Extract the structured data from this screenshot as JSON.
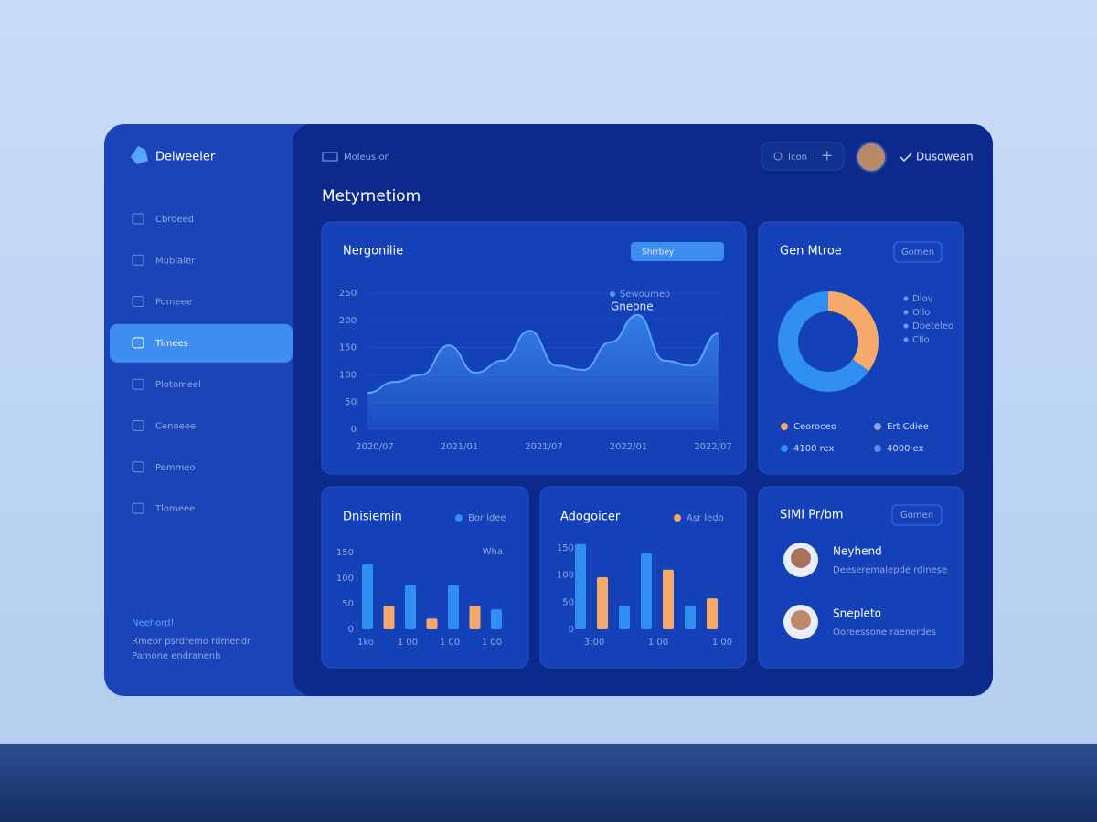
{
  "brand": "Delweeler",
  "sidebar": {
    "items": [
      "Cbroeed",
      "Mublaler",
      "Pomeee",
      "Timees",
      "Plotomeel",
      "Cenoeee",
      "Pemmeo",
      "Tlomeee"
    ],
    "active": 3,
    "footer_title": "Neehord!",
    "footer_lines": [
      "Rmeor psrdremo rdmendr",
      "Pamone endranenh"
    ]
  },
  "topbar": {
    "breadcrumb": "Moleus on",
    "search": "Icon",
    "user": "Dusowean"
  },
  "page_title": "Metyrnetiom",
  "area_card": {
    "title": "Nergonilie",
    "button": "Shrrbey",
    "legend": "Sewoumeo",
    "annotation": "Gneone",
    "color": "#3d8ef0",
    "values": [
      67,
      87,
      100,
      154,
      104,
      126,
      181,
      117,
      109,
      160,
      210,
      126,
      117,
      176
    ],
    "ylim": [
      0,
      250
    ],
    "yticks": [
      0,
      50,
      100,
      150,
      200,
      250
    ],
    "xlabels": [
      "2020/07",
      "2021/01",
      "2021/07",
      "2022/01",
      "2022/07"
    ]
  },
  "donut_card": {
    "title": "Gen Mtroe",
    "button": "Gomen",
    "values": [
      65,
      35
    ],
    "colors": [
      "#2f8ff0",
      "#f5a96a"
    ],
    "side_legend": [
      "Dlov",
      "Ollo",
      "Doeteleo",
      "Cllo"
    ],
    "legend": [
      {
        "label": "Ceoroceo",
        "color": "#f5a96a"
      },
      {
        "label": "Ert Cdiee",
        "color": "#8aa4d8"
      },
      {
        "label": "4100 rex",
        "color": "#2f8ff0"
      },
      {
        "label": "4000 ex",
        "color": "#5b8ee8"
      }
    ]
  },
  "bar_cards": [
    {
      "title": "Dnisiemin",
      "legend": "Bor ldee",
      "legend_color": "#2f8ff0",
      "note": "Wha",
      "values": [
        127,
        46,
        87,
        21,
        87,
        46,
        39
      ],
      "colors": [
        "#2f8ff0",
        "#f5a96a",
        "#2f8ff0",
        "#f5a96a",
        "#2f8ff0",
        "#f5a96a",
        "#2f8ff0"
      ],
      "ylim": [
        0,
        150
      ],
      "yticks": [
        0,
        50,
        100,
        150
      ],
      "xlabels": [
        "1ko",
        "1 00",
        "1 00",
        "1 00"
      ]
    },
    {
      "title": "Adogoicer",
      "legend": "Asr ledo",
      "legend_color": "#f5a96a",
      "values": [
        157,
        96,
        43,
        140,
        110,
        43,
        57
      ],
      "colors": [
        "#2f8ff0",
        "#f5a96a",
        "#2f8ff0",
        "#2f8ff0",
        "#f5a96a",
        "#2f8ff0",
        "#f5a96a"
      ],
      "ylim": [
        0,
        160
      ],
      "yticks": [
        0,
        50,
        100,
        150
      ],
      "xlabels": [
        "3:00",
        "1 00",
        "1 00"
      ]
    }
  ],
  "people_card": {
    "title": "SIMI Pr/bm",
    "button": "Gomen",
    "people": [
      {
        "name": "Neyhend",
        "desc": "Deeseremalepde rdinese"
      },
      {
        "name": "Snepleto",
        "desc": "Ooreessone raenerdes"
      }
    ]
  }
}
